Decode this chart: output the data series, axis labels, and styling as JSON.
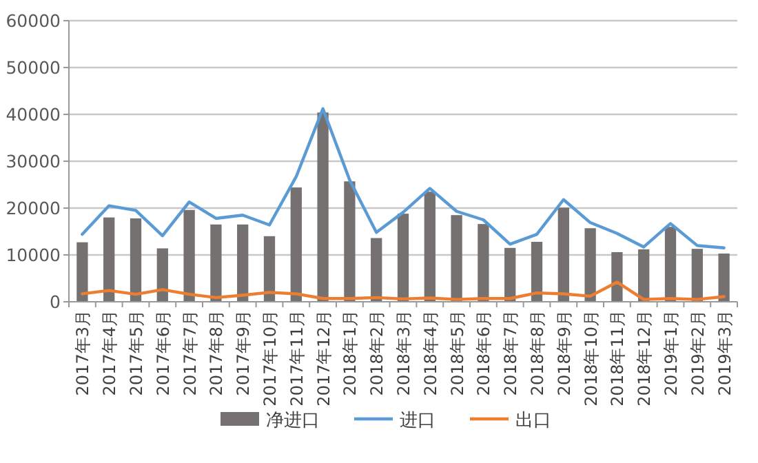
{
  "chart_data": {
    "type": "bar",
    "categories": [
      "2017年3月",
      "2017年4月",
      "2017年5月",
      "2017年6月",
      "2017年7月",
      "2017年8月",
      "2017年9月",
      "2017年10月",
      "2017年11月",
      "2017年12月",
      "2018年1月",
      "2018年2月",
      "2018年3月",
      "2018年4月",
      "2018年5月",
      "2018年6月",
      "2018年7月",
      "2018年8月",
      "2018年9月",
      "2018年10月",
      "2018年11月",
      "2018年12月",
      "2019年1月",
      "2019年2月",
      "2019年3月"
    ],
    "series": [
      {
        "name": "净进口",
        "color": "#767171",
        "values": [
          12700,
          18000,
          17800,
          11400,
          19600,
          16500,
          16500,
          14000,
          24400,
          40400,
          25700,
          13600,
          18800,
          23500,
          18500,
          16600,
          11500,
          12800,
          20100,
          15700,
          10600,
          11200,
          16000,
          11300,
          10300
        ]
      },
      {
        "name": "进口",
        "type": "line",
        "color": "#5b9bd5",
        "values": [
          14400,
          20500,
          19500,
          14100,
          21300,
          17800,
          18500,
          16400,
          26700,
          41200,
          26000,
          14800,
          19100,
          24200,
          19300,
          17500,
          12300,
          14400,
          21800,
          16900,
          14600,
          11700,
          16700,
          12000,
          11500
        ]
      },
      {
        "name": "出口",
        "type": "line",
        "color": "#ed7d31",
        "values": [
          1700,
          2400,
          1600,
          2600,
          1600,
          900,
          1400,
          2000,
          1700,
          700,
          700,
          900,
          600,
          800,
          500,
          700,
          700,
          1900,
          1700,
          1200,
          4200,
          500,
          700,
          500,
          1100
        ]
      }
    ],
    "ylim": [
      0,
      60000
    ],
    "yticks": [
      0,
      10000,
      20000,
      30000,
      40000,
      50000,
      60000
    ],
    "grid": "y",
    "legend": "bottom"
  }
}
